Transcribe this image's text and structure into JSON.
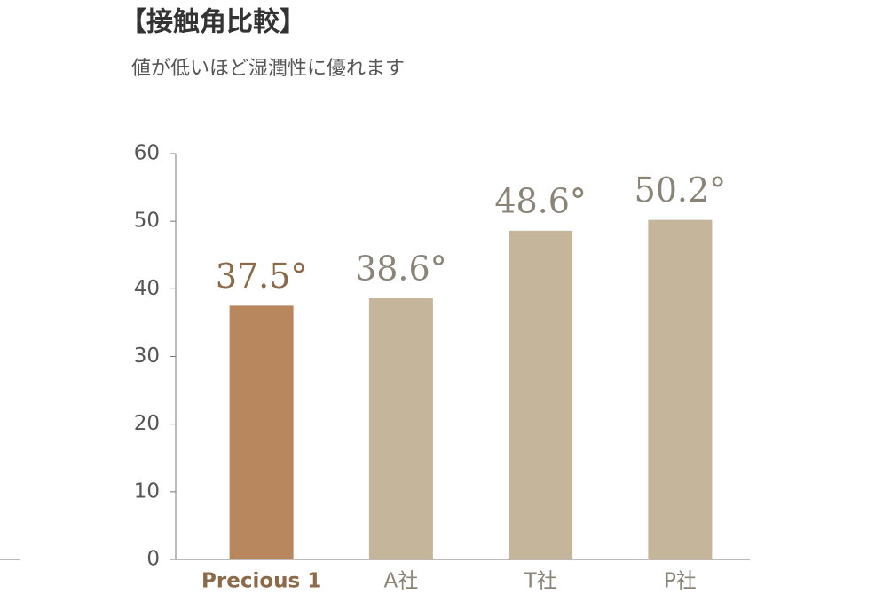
{
  "chart_data": {
    "type": "bar",
    "title": "【接触角比較】",
    "subtitle": "値が低いほど湿潤性に優れます",
    "categories": [
      "Precious 1",
      "A社",
      "T社",
      "P社"
    ],
    "values": [
      37.5,
      38.6,
      48.6,
      50.2
    ],
    "value_labels": [
      "37.5°",
      "38.6°",
      "48.6°",
      "50.2°"
    ],
    "colors": [
      "#b9875d",
      "#c4b59b",
      "#c4b59b",
      "#c4b59b"
    ],
    "label_colors": [
      "#8b6a4a",
      "#8a8478",
      "#8a8478",
      "#8a8478"
    ],
    "ylim": [
      0,
      60
    ],
    "yticks": [
      0,
      10,
      20,
      30,
      40,
      50,
      60
    ]
  }
}
